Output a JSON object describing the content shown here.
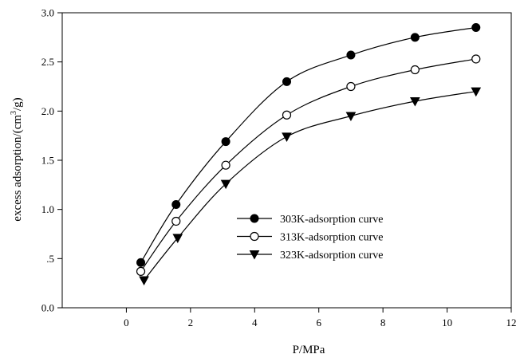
{
  "chart_data": {
    "type": "line",
    "title": "",
    "xlabel": "P/MPa",
    "ylabel": "excess adsorption/(cm³/g)",
    "ylabel_parts": {
      "pre": "excess adsorption/(cm",
      "sup": "3",
      "post": "/g)"
    },
    "xlim": [
      -2,
      12
    ],
    "ylim": [
      0,
      3.0
    ],
    "xticks": [
      0,
      2,
      4,
      6,
      8,
      10,
      12
    ],
    "xtick_labels": [
      "0",
      "2",
      "4",
      "6",
      "8",
      "10",
      "12"
    ],
    "yticks": [
      0,
      0.5,
      1.0,
      1.5,
      2.0,
      2.5,
      3.0
    ],
    "ytick_labels": [
      "0.0",
      ".5",
      "1.0",
      "1.5",
      "2.0",
      "2.5",
      "3.0"
    ],
    "grid": false,
    "legend_position": "center-right",
    "series": [
      {
        "name": "303K-adsorption curve",
        "marker": "filled-circle",
        "color": "#000000",
        "x": [
          0.45,
          1.55,
          3.1,
          5.0,
          7.0,
          9.0,
          10.9
        ],
        "y": [
          0.46,
          1.05,
          1.69,
          2.3,
          2.57,
          2.75,
          2.85
        ]
      },
      {
        "name": "313K-adsorption curve",
        "marker": "open-circle",
        "color": "#000000",
        "x": [
          0.45,
          1.55,
          3.1,
          5.0,
          7.0,
          9.0,
          10.9
        ],
        "y": [
          0.37,
          0.88,
          1.45,
          1.96,
          2.25,
          2.42,
          2.53
        ]
      },
      {
        "name": "323K-adsorption curve",
        "marker": "filled-triangle-down",
        "color": "#000000",
        "x": [
          0.55,
          1.6,
          3.1,
          5.0,
          7.0,
          9.0,
          10.9
        ],
        "y": [
          0.28,
          0.71,
          1.26,
          1.74,
          1.95,
          2.1,
          2.2
        ]
      }
    ]
  }
}
